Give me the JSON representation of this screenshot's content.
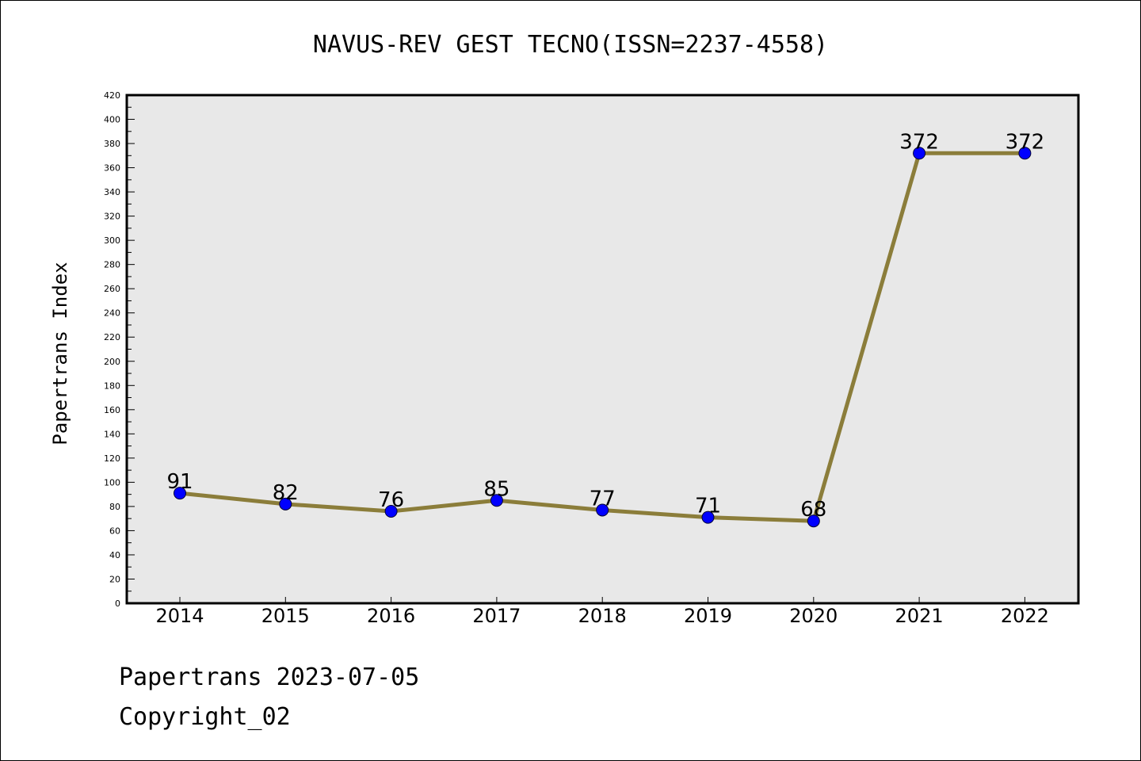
{
  "chart_data": {
    "type": "line",
    "title": "NAVUS-REV GEST TECNO(ISSN=2237-4558)",
    "xlabel": "",
    "ylabel": "Papertrans Index",
    "categories": [
      "2014",
      "2015",
      "2016",
      "2017",
      "2018",
      "2019",
      "2020",
      "2021",
      "2022"
    ],
    "series": [
      {
        "values": [
          91,
          82,
          76,
          85,
          77,
          71,
          68,
          372,
          372
        ]
      }
    ],
    "data_labels": [
      "91",
      "82",
      "76",
      "85",
      "77",
      "71",
      "68",
      "372",
      "372"
    ],
    "ylim": [
      0,
      420
    ],
    "yticks": [
      "0",
      "20",
      "40",
      "60",
      "80",
      "100",
      "120",
      "140",
      "160",
      "180",
      "200",
      "220",
      "240",
      "260",
      "280",
      "300",
      "320",
      "340",
      "360",
      "380",
      "400",
      "420"
    ],
    "grid": false,
    "legend": "none",
    "colors": {
      "line": "#8b7d3a",
      "marker": "#0000ff",
      "plot_background": "#e8e8e8"
    }
  },
  "footer": {
    "line1": "Papertrans 2023-07-05",
    "line2": "Copyright_02"
  }
}
